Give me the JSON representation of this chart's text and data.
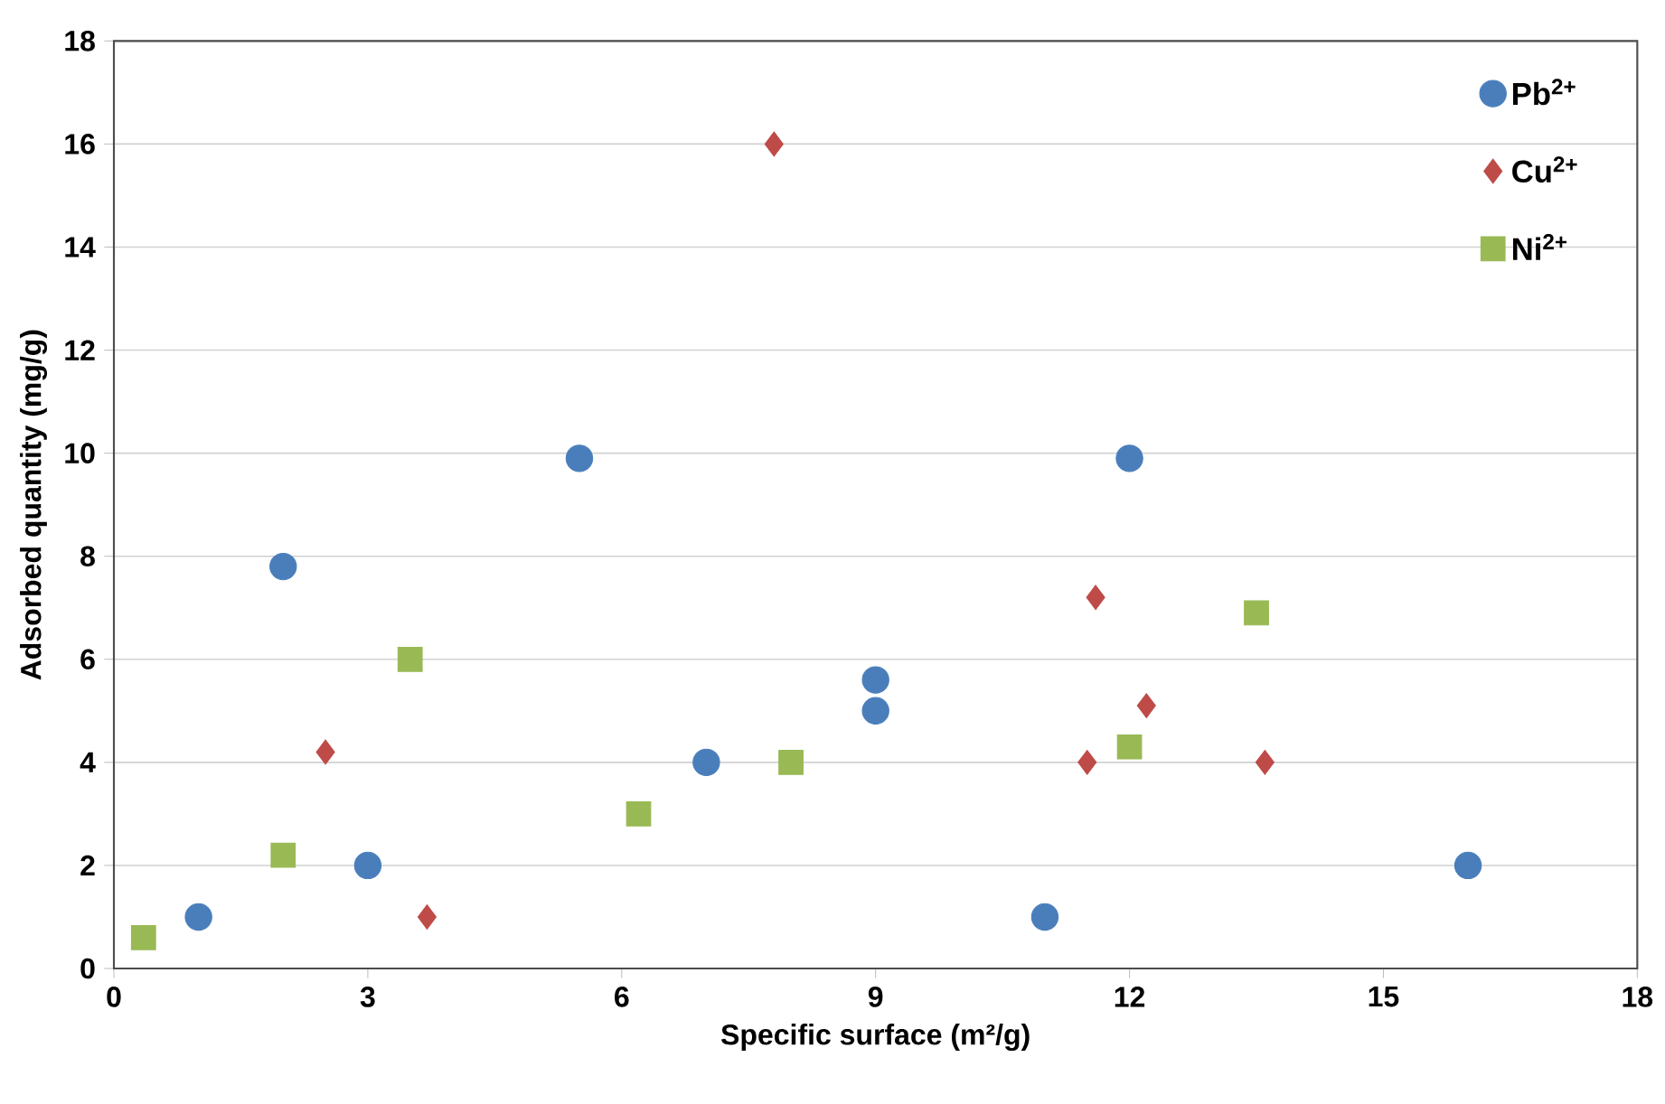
{
  "chart_data": {
    "type": "scatter",
    "xlabel": "Specific surface (m²/g)",
    "ylabel": "Adsorbed quantity (mg/g)",
    "xlim": [
      0,
      18
    ],
    "xticks": [
      0,
      3,
      6,
      9,
      12,
      15,
      18
    ],
    "ylim": [
      0,
      18
    ],
    "yticks": [
      0,
      2,
      4,
      6,
      8,
      10,
      12,
      14,
      16,
      18
    ],
    "grid": "y",
    "legend": "top right",
    "series": [
      {
        "name": "Pb$^{2+}$",
        "color": "#4a7ebb",
        "marker": "circle",
        "x": [
          1,
          2,
          3,
          5.5,
          7,
          9,
          9,
          11,
          12,
          16
        ],
        "values": [
          1,
          7.8,
          2,
          9.9,
          4,
          5.6,
          5,
          1,
          9.9,
          2
        ]
      },
      {
        "name": "Cu$^{2+}$",
        "color": "#be4b48",
        "marker": "diamond",
        "x": [
          2.5,
          3.7,
          7.8,
          11.5,
          11.6,
          12.2,
          13.6
        ],
        "values": [
          4.2,
          1,
          16,
          4,
          7.2,
          5.1,
          4
        ]
      },
      {
        "name": "Ni$^{2+}$",
        "color": "#98b954",
        "marker": "square",
        "x": [
          0.35,
          2,
          3.5,
          6.2,
          8,
          12,
          13.5
        ],
        "values": [
          0.6,
          2.2,
          6,
          3,
          4,
          4.3,
          6.9
        ]
      }
    ]
  }
}
